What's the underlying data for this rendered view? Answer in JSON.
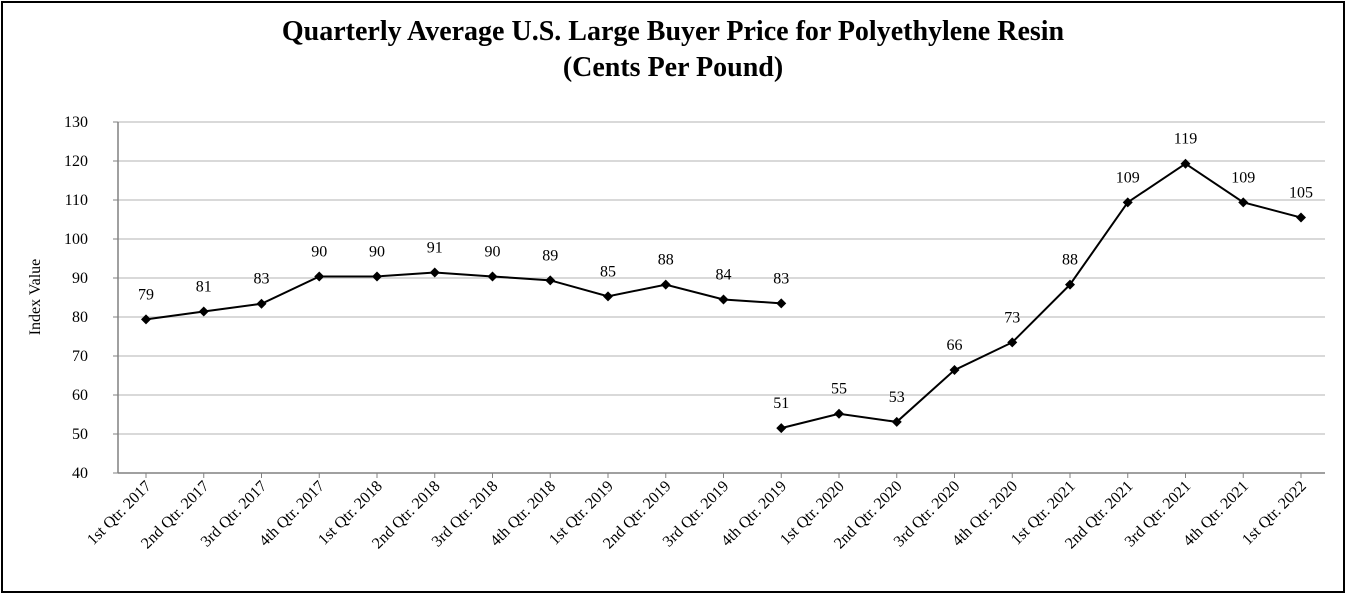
{
  "chart_data": {
    "type": "line",
    "title": "Quarterly Average U.S. Large Buyer Price for Polyethylene Resin",
    "subtitle": "(Cents Per Pound)",
    "ylabel": "Index Value",
    "xlabel": "",
    "ylim": [
      40,
      130
    ],
    "yticks": [
      40,
      50,
      60,
      70,
      80,
      90,
      100,
      110,
      120,
      130
    ],
    "grid": true,
    "legend": "none",
    "line_color": "#000000",
    "gridline_color": "#d9d9d9",
    "categories": [
      "1st Qtr. 2017",
      "2nd Qtr. 2017",
      "3rd Qtr. 2017",
      "4th Qtr. 2017",
      "1st Qtr. 2018",
      "2nd Qtr. 2018",
      "3rd Qtr. 2018",
      "4th Qtr. 2018",
      "1st Qtr. 2019",
      "2nd Qtr. 2019",
      "3rd Qtr. 2019",
      "4th Qtr. 2019",
      "1st Qtr. 2020",
      "2nd Qtr. 2020",
      "3rd Qtr. 2020",
      "4th Qtr. 2020",
      "1st Qtr. 2021",
      "2nd Qtr. 2021",
      "3rd Qtr. 2021",
      "4th Qtr. 2021",
      "1st Qtr. 2022"
    ],
    "series": [
      {
        "values": [
          79.4,
          81.4,
          83.4,
          90.4,
          90.4,
          91.4,
          90.4,
          89.4,
          85.3,
          88.3,
          84.5,
          83.5,
          null,
          null,
          null,
          null,
          null,
          null,
          null,
          null,
          null
        ],
        "labels": [
          "79",
          "81",
          "83",
          "90",
          "90",
          "91",
          "90",
          "89",
          "85",
          "88",
          "84",
          "83",
          "",
          "",
          "",
          "",
          "",
          "",
          "",
          "",
          ""
        ]
      },
      {
        "values": [
          null,
          null,
          null,
          null,
          null,
          null,
          null,
          null,
          null,
          null,
          null,
          51.5,
          55.2,
          53.1,
          66.4,
          73.5,
          88.3,
          109.4,
          119.3,
          109.4,
          105.5
        ],
        "labels": [
          "",
          "",
          "",
          "",
          "",
          "",
          "",
          "",
          "",
          "",
          "",
          "51",
          "55",
          "53",
          "66",
          "73",
          "88",
          "109",
          "119",
          "109",
          "105"
        ]
      }
    ]
  }
}
